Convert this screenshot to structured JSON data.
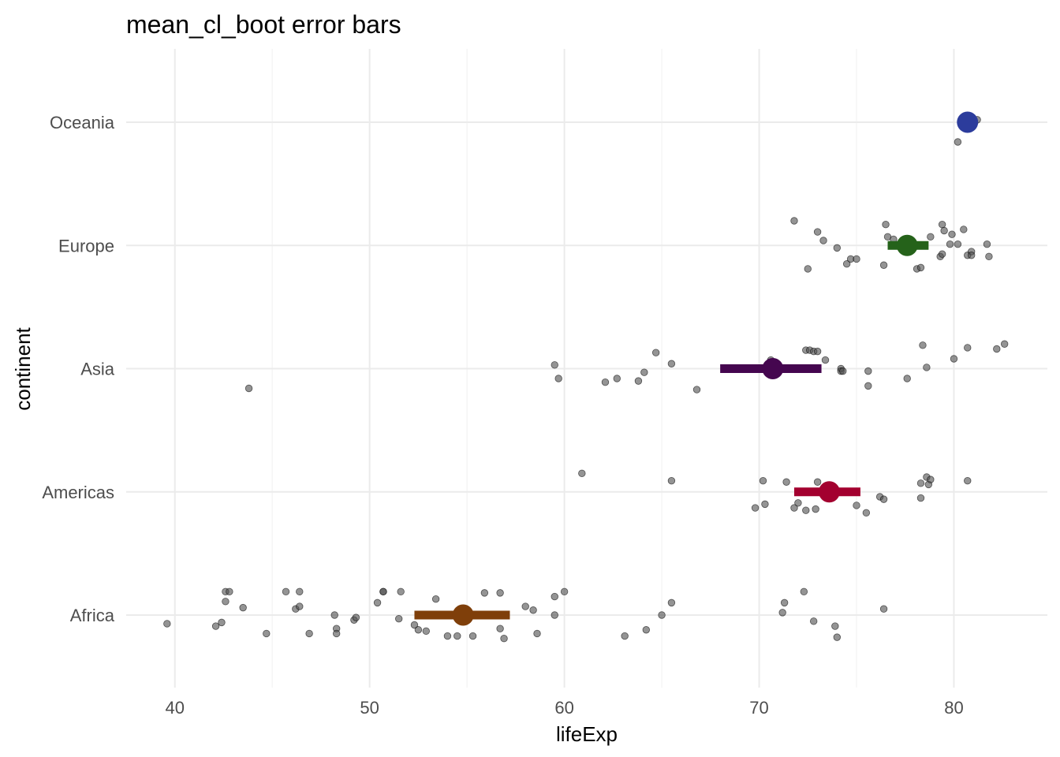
{
  "chart_data": {
    "type": "scatter",
    "title": "mean_cl_boot error bars",
    "xlabel": "lifeExp",
    "ylabel": "continent",
    "xlim": [
      37.5,
      84.8
    ],
    "x_ticks": [
      40,
      50,
      60,
      70,
      80
    ],
    "categories": [
      "Africa",
      "Americas",
      "Asia",
      "Europe",
      "Oceania"
    ],
    "grid": true,
    "legend": "none",
    "point_color": "#4d4d4d",
    "summary": [
      {
        "continent": "Africa",
        "mean": 54.8,
        "ymin": 52.3,
        "ymax": 57.2,
        "color": "#7f3f0a"
      },
      {
        "continent": "Americas",
        "mean": 73.6,
        "ymin": 71.8,
        "ymax": 75.2,
        "color": "#a3002f"
      },
      {
        "continent": "Asia",
        "mean": 70.7,
        "ymin": 68.0,
        "ymax": 73.2,
        "color": "#45064f"
      },
      {
        "continent": "Europe",
        "mean": 77.6,
        "ymin": 76.6,
        "ymax": 78.7,
        "color": "#25621a"
      },
      {
        "continent": "Oceania",
        "mean": 80.7,
        "ymin": 80.7,
        "ymax": 80.7,
        "color": "#2c3c9c"
      }
    ],
    "points": [
      {
        "continent": "Africa",
        "values": [
          [
            39.6,
            -0.07
          ],
          [
            42.1,
            -0.09
          ],
          [
            42.4,
            -0.06
          ],
          [
            42.6,
            0.19
          ],
          [
            42.6,
            0.11
          ],
          [
            42.8,
            0.19
          ],
          [
            43.5,
            0.06
          ],
          [
            44.7,
            -0.15
          ],
          [
            45.7,
            0.19
          ],
          [
            46.2,
            0.05
          ],
          [
            46.4,
            0.19
          ],
          [
            46.4,
            0.07
          ],
          [
            46.9,
            -0.15
          ],
          [
            48.2,
            0.0
          ],
          [
            48.3,
            -0.11
          ],
          [
            48.3,
            -0.15
          ],
          [
            49.2,
            -0.04
          ],
          [
            49.3,
            -0.02
          ],
          [
            50.4,
            0.1
          ],
          [
            50.7,
            0.19
          ],
          [
            50.7,
            0.19
          ],
          [
            51.5,
            -0.03
          ],
          [
            51.6,
            0.19
          ],
          [
            52.3,
            -0.08
          ],
          [
            52.5,
            -0.12
          ],
          [
            52.9,
            -0.13
          ],
          [
            53.4,
            0.13
          ],
          [
            54.0,
            -0.17
          ],
          [
            54.5,
            -0.17
          ],
          [
            55.3,
            -0.17
          ],
          [
            55.9,
            0.18
          ],
          [
            56.7,
            0.18
          ],
          [
            56.7,
            -0.11
          ],
          [
            56.9,
            -0.19
          ],
          [
            58.0,
            0.07
          ],
          [
            58.4,
            0.04
          ],
          [
            58.6,
            -0.15
          ],
          [
            59.5,
            0.15
          ],
          [
            59.5,
            0.0
          ],
          [
            60.0,
            0.19
          ],
          [
            63.1,
            -0.17
          ],
          [
            64.2,
            -0.12
          ],
          [
            65.0,
            0.0
          ],
          [
            65.5,
            0.1
          ],
          [
            71.2,
            0.02
          ],
          [
            71.3,
            0.1
          ],
          [
            72.3,
            0.19
          ],
          [
            72.8,
            -0.05
          ],
          [
            73.9,
            -0.09
          ],
          [
            74.0,
            -0.18
          ],
          [
            76.4,
            0.05
          ]
        ]
      },
      {
        "continent": "Americas",
        "values": [
          [
            60.9,
            0.15
          ],
          [
            65.5,
            0.09
          ],
          [
            69.8,
            -0.13
          ],
          [
            70.2,
            0.09
          ],
          [
            70.3,
            -0.1
          ],
          [
            71.4,
            0.08
          ],
          [
            71.8,
            -0.13
          ],
          [
            72.0,
            -0.09
          ],
          [
            72.4,
            -0.15
          ],
          [
            72.9,
            -0.14
          ],
          [
            73.0,
            0.08
          ],
          [
            75.0,
            -0.11
          ],
          [
            75.5,
            -0.17
          ],
          [
            76.2,
            -0.04
          ],
          [
            76.4,
            -0.06
          ],
          [
            78.3,
            -0.05
          ],
          [
            78.3,
            0.07
          ],
          [
            78.6,
            0.12
          ],
          [
            78.7,
            0.06
          ],
          [
            78.8,
            0.1
          ],
          [
            80.7,
            0.09
          ]
        ]
      },
      {
        "continent": "Asia",
        "values": [
          [
            43.8,
            -0.16
          ],
          [
            59.5,
            0.03
          ],
          [
            59.7,
            -0.08
          ],
          [
            62.1,
            -0.11
          ],
          [
            62.7,
            -0.08
          ],
          [
            63.8,
            -0.1
          ],
          [
            64.1,
            -0.03
          ],
          [
            64.7,
            0.13
          ],
          [
            65.5,
            0.04
          ],
          [
            66.8,
            -0.17
          ],
          [
            70.6,
            0.07
          ],
          [
            72.4,
            0.15
          ],
          [
            72.6,
            0.15
          ],
          [
            72.8,
            0.14
          ],
          [
            73.0,
            0.14
          ],
          [
            73.4,
            0.07
          ],
          [
            74.2,
            0.0
          ],
          [
            74.2,
            -0.02
          ],
          [
            74.3,
            -0.02
          ],
          [
            75.6,
            -0.02
          ],
          [
            75.6,
            -0.14
          ],
          [
            77.6,
            -0.08
          ],
          [
            78.4,
            0.19
          ],
          [
            78.6,
            0.01
          ],
          [
            80.0,
            0.08
          ],
          [
            80.7,
            0.17
          ],
          [
            82.2,
            0.16
          ],
          [
            82.6,
            0.2
          ]
        ]
      },
      {
        "continent": "Europe",
        "values": [
          [
            71.8,
            0.2
          ],
          [
            72.5,
            -0.19
          ],
          [
            73.0,
            0.11
          ],
          [
            73.3,
            0.04
          ],
          [
            74.0,
            -0.02
          ],
          [
            74.5,
            -0.15
          ],
          [
            74.7,
            -0.11
          ],
          [
            75.0,
            -0.11
          ],
          [
            76.4,
            -0.16
          ],
          [
            76.5,
            0.17
          ],
          [
            76.6,
            0.07
          ],
          [
            76.9,
            0.05
          ],
          [
            78.1,
            -0.19
          ],
          [
            78.3,
            -0.18
          ],
          [
            78.8,
            0.07
          ],
          [
            79.3,
            -0.09
          ],
          [
            79.4,
            0.17
          ],
          [
            79.4,
            -0.07
          ],
          [
            79.5,
            0.12
          ],
          [
            79.8,
            0.01
          ],
          [
            79.9,
            0.09
          ],
          [
            80.2,
            0.01
          ],
          [
            80.5,
            0.13
          ],
          [
            80.7,
            -0.08
          ],
          [
            80.9,
            -0.05
          ],
          [
            80.9,
            -0.08
          ],
          [
            81.7,
            0.01
          ],
          [
            81.8,
            -0.09
          ]
        ]
      },
      {
        "continent": "Oceania",
        "values": [
          [
            80.2,
            -0.16
          ],
          [
            81.2,
            0.02
          ]
        ]
      }
    ]
  }
}
